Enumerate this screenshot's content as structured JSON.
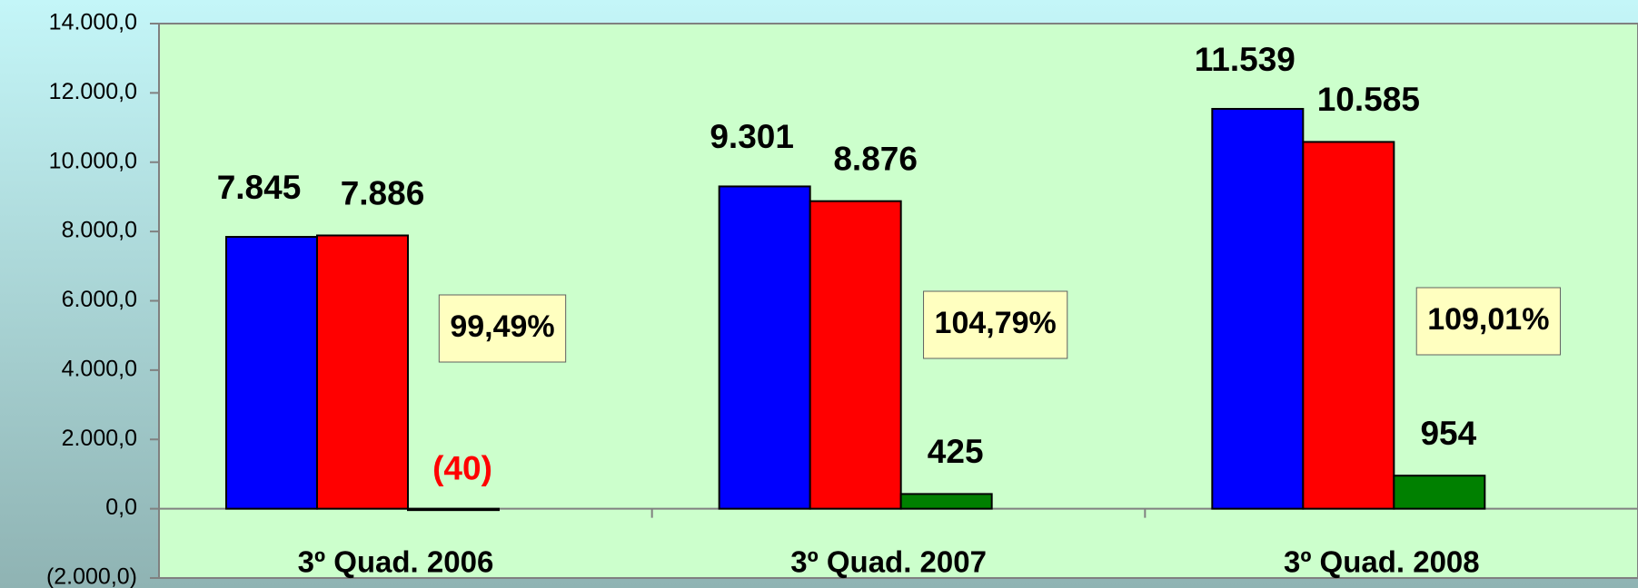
{
  "chart_data": {
    "type": "bar",
    "categories": [
      "3º Quad. 2006",
      "3º Quad. 2007",
      "3º Quad. 2008"
    ],
    "series": [
      {
        "color": "#0000ff",
        "values": [
          7845,
          9301,
          11539
        ],
        "value_labels": [
          "7.845",
          "9.301",
          "11.539"
        ]
      },
      {
        "color": "#ff0000",
        "values": [
          7886,
          8876,
          10585
        ],
        "value_labels": [
          "7.886",
          "8.876",
          "10.585"
        ]
      },
      {
        "color": "#008000",
        "values": [
          -40,
          425,
          954
        ],
        "value_labels": [
          "(40)",
          "425",
          "954"
        ]
      }
    ],
    "annotations": [
      "99,49%",
      "104,79%",
      "109,01%"
    ],
    "ylim": [
      -2000,
      14000
    ],
    "yticks": [
      {
        "value": -2000,
        "label": "(2.000,0)"
      },
      {
        "value": 0,
        "label": "0,0"
      },
      {
        "value": 2000,
        "label": "2.000,0"
      },
      {
        "value": 4000,
        "label": "4.000,0"
      },
      {
        "value": 6000,
        "label": "6.000,0"
      },
      {
        "value": 8000,
        "label": "8.000,0"
      },
      {
        "value": 10000,
        "label": "10.000,0"
      },
      {
        "value": 12000,
        "label": "12.000,0"
      },
      {
        "value": 14000,
        "label": "14.000,0"
      }
    ]
  }
}
